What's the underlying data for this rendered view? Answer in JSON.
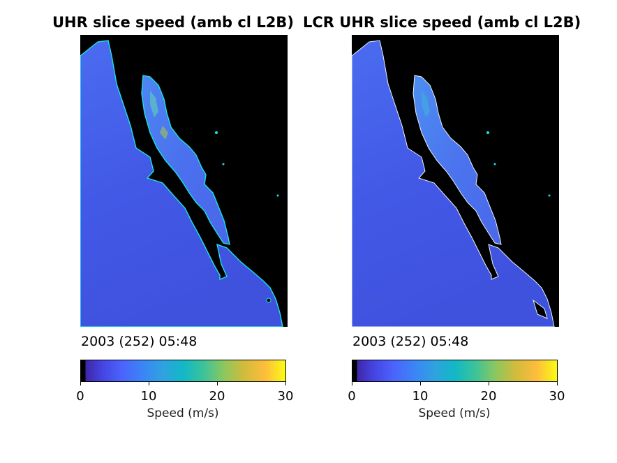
{
  "panels": [
    {
      "title": "UHR slice speed (amb cl L2B)",
      "timestamp": "2003 (252) 05:48",
      "colorbar": {
        "ticks": [
          "0",
          "10",
          "20",
          "30"
        ],
        "label": "Speed (m/s)",
        "range": [
          0,
          30
        ]
      }
    },
    {
      "title": "LCR UHR slice speed (amb cl L2B)",
      "timestamp": "2003 (252) 05:48",
      "colorbar": {
        "ticks": [
          "0",
          "10",
          "20",
          "30"
        ],
        "label": "Speed (m/s)",
        "range": [
          0,
          30
        ]
      }
    }
  ],
  "colors": {
    "land": "#000000",
    "ocean_speed_low": "#3a4fe0",
    "ocean_speed_mid": "#4a6cf0",
    "coast_edge": "#19e3e8"
  }
}
